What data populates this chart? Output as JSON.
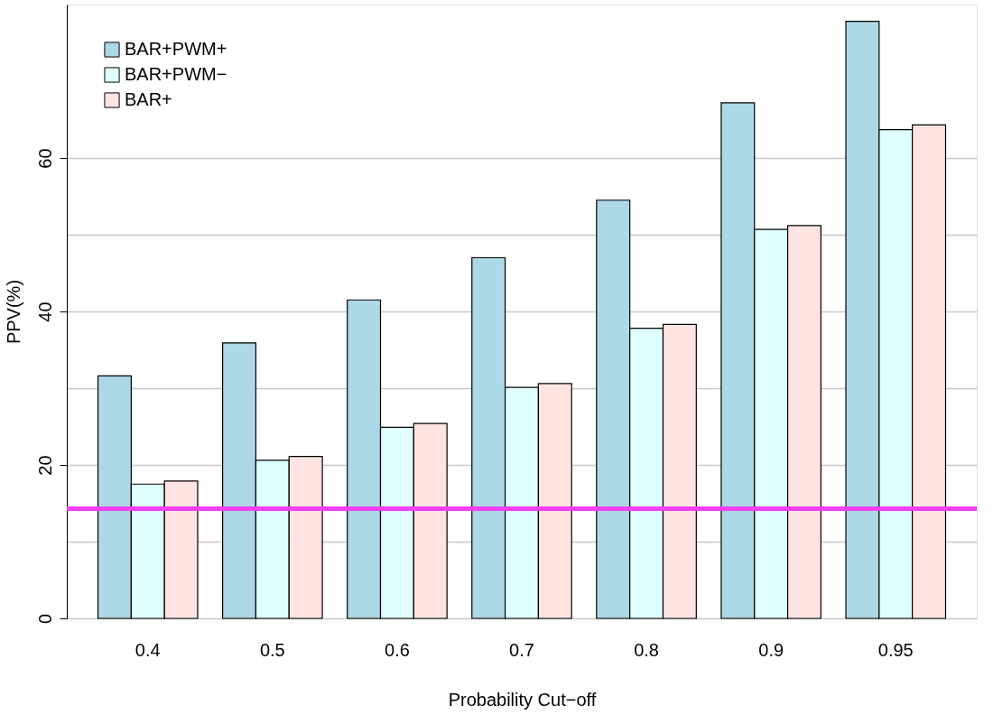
{
  "chart_data": {
    "type": "bar",
    "xlabel": "Probability Cut−off",
    "ylabel": "PPV(%)",
    "categories": [
      "0.4",
      "0.5",
      "0.6",
      "0.7",
      "0.8",
      "0.9",
      "0.95"
    ],
    "series": [
      {
        "name": "BAR+PWM+",
        "color": "#add8e6",
        "values": [
          31.6,
          35.9,
          41.5,
          47.0,
          54.5,
          67.2,
          77.8
        ]
      },
      {
        "name": "BAR+PWM−",
        "color": "#e0ffff",
        "values": [
          17.5,
          20.6,
          24.9,
          30.1,
          37.8,
          50.7,
          63.7
        ]
      },
      {
        "name": "BAR+",
        "color": "#ffe4e1",
        "values": [
          17.9,
          21.1,
          25.4,
          30.6,
          38.3,
          51.2,
          64.3
        ]
      }
    ],
    "ylim": [
      0,
      80
    ],
    "yticks": [
      0,
      {
        "value": 10,
        "label": null
      },
      20,
      {
        "value": 30,
        "label": null
      },
      40,
      {
        "value": 50,
        "label": null
      },
      60
    ],
    "grid": "y",
    "legend": "top left",
    "ref_lines": [
      {
        "axis": "y",
        "value": 14.3,
        "color": "#f040f0"
      }
    ]
  }
}
